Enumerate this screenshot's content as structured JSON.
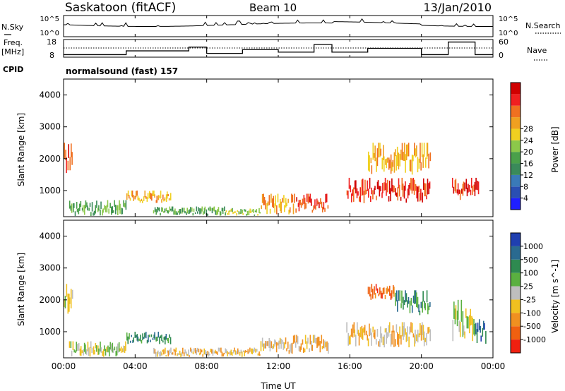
{
  "header": {
    "station": "Saskatoon (fitACF)",
    "beam": "Beam 10",
    "date": "13/Jan/2010"
  },
  "noise_panel": {
    "left_label": "N.Sky",
    "left_ticks": [
      "10^5",
      "10^0"
    ],
    "right_label": "N.Search",
    "right_ticks": [
      "10^5",
      "10^0"
    ]
  },
  "freq_panel": {
    "left_label_line1": "Freq.",
    "left_label_line2": "[MHz]",
    "left_ticks": [
      "18",
      "8"
    ],
    "right_label": "Nave",
    "right_ticks": [
      "60",
      "0"
    ]
  },
  "cpid": {
    "label": "CPID",
    "value": "normalsound (fast) 157"
  },
  "x_axis": {
    "label": "Time UT",
    "ticks": [
      "00:00",
      "04:00",
      "08:00",
      "12:00",
      "16:00",
      "20:00",
      "00:00"
    ]
  },
  "chart_data": [
    {
      "type": "heatmap",
      "name": "power",
      "title": "",
      "xlabel": "",
      "ylabel": "Slant Range [km]",
      "x_range_hours": [
        0,
        24
      ],
      "ylim": [
        180,
        4500
      ],
      "y_ticks": [
        1000,
        2000,
        3000,
        4000
      ],
      "colorbar": {
        "label": "Power [dB]",
        "ticks": [
          "4",
          "8",
          "12",
          "16",
          "20",
          "24",
          "28"
        ],
        "colors": [
          "#1f1fff",
          "#2a4fb3",
          "#3a7ab8",
          "#3a8a5a",
          "#4aa04a",
          "#8cc84a",
          "#f0d020",
          "#f0a020",
          "#f07020",
          "#f02020",
          "#d00000"
        ]
      },
      "regions": [
        {
          "t0": 0.0,
          "t1": 0.5,
          "r0": 1500,
          "r1": 2500,
          "level": 9
        },
        {
          "t0": 0.3,
          "t1": 3.5,
          "r0": 200,
          "r1": 700,
          "level": 4
        },
        {
          "t0": 3.5,
          "t1": 6.0,
          "r0": 600,
          "r1": 1000,
          "level": 7
        },
        {
          "t0": 5.0,
          "t1": 9.0,
          "r0": 200,
          "r1": 500,
          "level": 4
        },
        {
          "t0": 9.0,
          "t1": 11.0,
          "r0": 200,
          "r1": 450,
          "level": 5
        },
        {
          "t0": 11.0,
          "t1": 13.0,
          "r0": 250,
          "r1": 900,
          "level": 7
        },
        {
          "t0": 13.0,
          "t1": 14.8,
          "r0": 300,
          "r1": 900,
          "level": 9
        },
        {
          "t0": 15.8,
          "t1": 20.5,
          "r0": 600,
          "r1": 1400,
          "level": 9
        },
        {
          "t0": 17.0,
          "t1": 20.5,
          "r0": 1500,
          "r1": 2500,
          "level": 7
        },
        {
          "t0": 21.7,
          "t1": 23.2,
          "r0": 700,
          "r1": 1400,
          "level": 9
        }
      ]
    },
    {
      "type": "heatmap",
      "name": "velocity",
      "title": "",
      "xlabel": "Time UT",
      "ylabel": "Slant Range [km]",
      "x_range_hours": [
        0,
        24
      ],
      "ylim": [
        180,
        4500
      ],
      "y_ticks": [
        1000,
        2000,
        3000,
        4000
      ],
      "colorbar": {
        "label": "Velocity [m s^-1]",
        "ticks": [
          "1000",
          "500",
          "100",
          "25",
          "-25",
          "-100",
          "-500",
          "-1000"
        ],
        "colors": [
          "#1f3fb0",
          "#2a6a90",
          "#2e8a50",
          "#5ab040",
          "#bebebe",
          "#f0c020",
          "#f09020",
          "#f06010",
          "#f02010"
        ]
      },
      "regions": [
        {
          "t0": 0.0,
          "t1": 0.5,
          "r0": 1500,
          "r1": 2500,
          "level": 4
        },
        {
          "t0": 0.3,
          "t1": 3.5,
          "r0": 200,
          "r1": 700,
          "level": 4
        },
        {
          "t0": 3.5,
          "t1": 6.0,
          "r0": 600,
          "r1": 1000,
          "level": 2
        },
        {
          "t0": 5.0,
          "t1": 11.0,
          "r0": 200,
          "r1": 500,
          "level": 5
        },
        {
          "t0": 11.0,
          "t1": 14.8,
          "r0": 300,
          "r1": 900,
          "level": 5
        },
        {
          "t0": 15.8,
          "t1": 20.5,
          "r0": 500,
          "r1": 1300,
          "level": 5
        },
        {
          "t0": 17.0,
          "t1": 18.5,
          "r0": 2000,
          "r1": 2500,
          "level": 7
        },
        {
          "t0": 18.5,
          "t1": 20.5,
          "r0": 1500,
          "r1": 2300,
          "level": 2
        },
        {
          "t0": 21.7,
          "t1": 23.0,
          "r0": 700,
          "r1": 2000,
          "level": 4
        },
        {
          "t0": 23.0,
          "t1": 23.6,
          "r0": 600,
          "r1": 1400,
          "level": 1
        }
      ]
    }
  ]
}
